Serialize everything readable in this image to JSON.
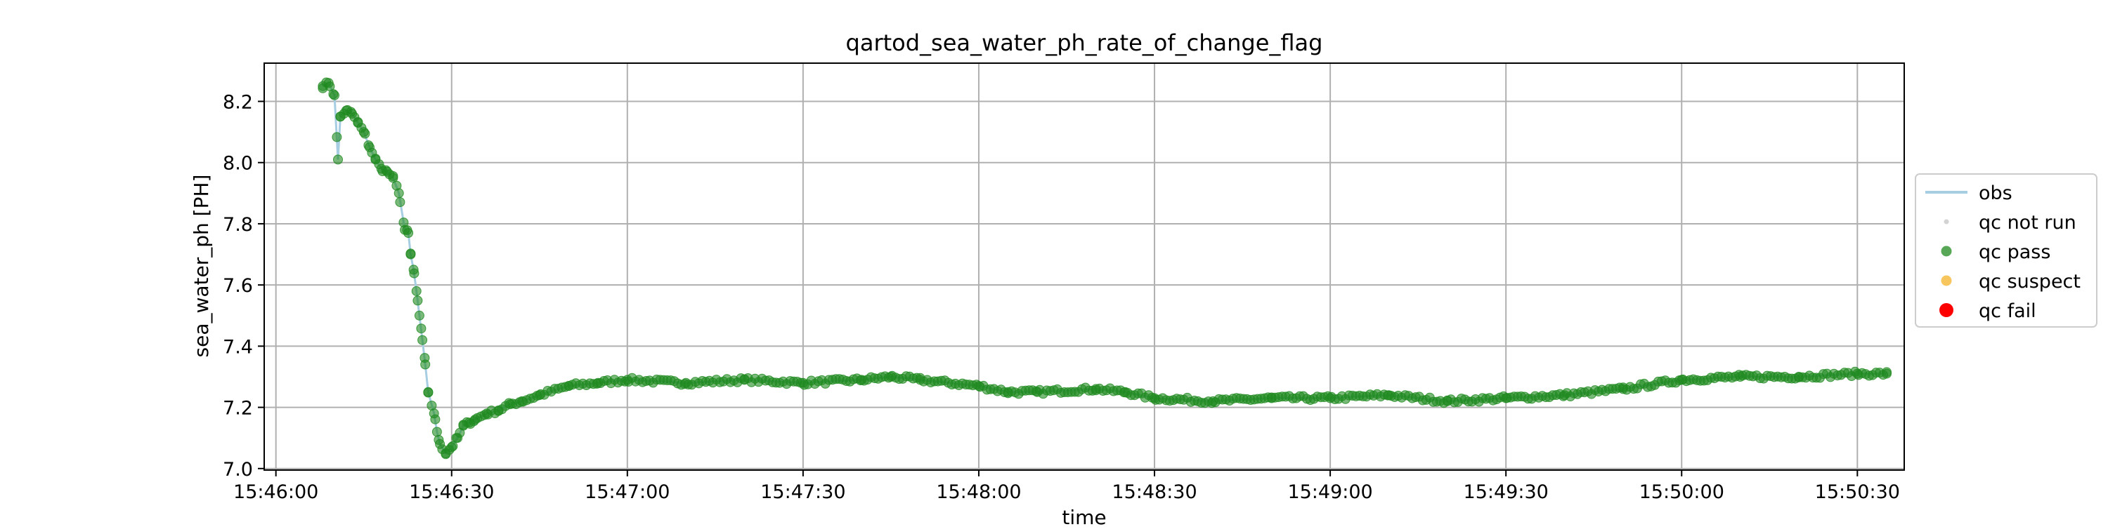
{
  "chart_data": {
    "type": "line",
    "title": "qartod_sea_water_ph_rate_of_change_flag",
    "xlabel": "time",
    "ylabel": "sea_water_ph [PH]",
    "x_unit": "time of day (HH:MM:SS)",
    "xlim": [
      "15:45:58",
      "15:50:38"
    ],
    "ylim": [
      6.995,
      8.325
    ],
    "xticks": [
      "15:46:00",
      "15:46:30",
      "15:47:00",
      "15:47:30",
      "15:48:00",
      "15:48:30",
      "15:49:00",
      "15:49:30",
      "15:50:00",
      "15:50:30"
    ],
    "yticks": [
      "7.0",
      "7.2",
      "7.4",
      "7.6",
      "7.8",
      "8.0",
      "8.2"
    ],
    "grid": true,
    "legend_position": "center-right outside",
    "legend": [
      {
        "label": "obs",
        "kind": "line",
        "color": "#a6cde2"
      },
      {
        "label": "qc not run",
        "kind": "small-dot",
        "color": "#c8c8c8"
      },
      {
        "label": "qc pass",
        "kind": "dot",
        "color": "#1f8a1f"
      },
      {
        "label": "qc suspect",
        "kind": "dot",
        "color": "#f5b32a"
      },
      {
        "label": "qc fail",
        "kind": "big-dot",
        "color": "#ff0000"
      }
    ],
    "series": [
      {
        "name": "obs",
        "x": [
          "15:46:08",
          "15:46:09",
          "15:46:10",
          "15:46:10.6",
          "15:46:11",
          "15:46:12",
          "15:46:13",
          "15:46:14",
          "15:46:15",
          "15:46:16",
          "15:46:17",
          "15:46:18",
          "15:46:19",
          "15:46:20",
          "15:46:21",
          "15:46:22",
          "15:46:22.6",
          "15:46:23",
          "15:46:23.5",
          "15:46:24",
          "15:46:24.5",
          "15:46:25",
          "15:46:25.5",
          "15:46:26",
          "15:46:27",
          "15:46:27.5",
          "15:46:28",
          "15:46:29",
          "15:46:30",
          "15:46:31",
          "15:46:32",
          "15:46:33",
          "15:46:34",
          "15:46:36",
          "15:46:38",
          "15:46:40",
          "15:46:42",
          "15:46:45",
          "15:46:50",
          "15:46:55",
          "15:47:00",
          "15:47:10",
          "15:47:20",
          "15:47:30",
          "15:47:40",
          "15:47:45",
          "15:47:50",
          "15:48:00",
          "15:48:05",
          "15:48:10",
          "15:48:20",
          "15:48:25",
          "15:48:30",
          "15:48:40",
          "15:48:50",
          "15:49:00",
          "15:49:10",
          "15:49:20",
          "15:49:30",
          "15:49:40",
          "15:49:50",
          "15:50:00",
          "15:50:10",
          "15:50:20",
          "15:50:30",
          "15:50:35"
        ],
        "values": [
          8.25,
          8.26,
          8.22,
          8.01,
          8.15,
          8.17,
          8.16,
          8.13,
          8.1,
          8.05,
          8.01,
          7.98,
          7.97,
          7.95,
          7.9,
          7.78,
          7.77,
          7.7,
          7.65,
          7.58,
          7.5,
          7.42,
          7.34,
          7.25,
          7.18,
          7.12,
          7.08,
          7.05,
          7.07,
          7.1,
          7.14,
          7.15,
          7.16,
          7.18,
          7.19,
          7.21,
          7.22,
          7.24,
          7.27,
          7.28,
          7.29,
          7.28,
          7.29,
          7.28,
          7.29,
          7.3,
          7.29,
          7.27,
          7.25,
          7.25,
          7.26,
          7.25,
          7.23,
          7.22,
          7.23,
          7.23,
          7.24,
          7.22,
          7.23,
          7.24,
          7.26,
          7.29,
          7.3,
          7.3,
          7.31,
          7.31
        ]
      }
    ],
    "qc_flags": {
      "qc pass": "all points",
      "qc not run": "none",
      "qc suspect": "none",
      "qc fail": "none"
    }
  }
}
